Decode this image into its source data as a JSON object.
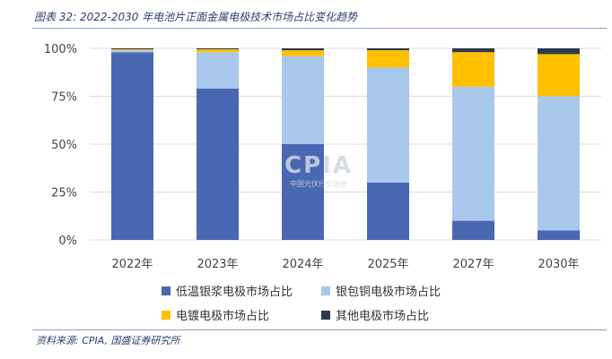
{
  "figure": {
    "title": "图表 32:  2022-2030 年电池片正面金属电极技术市场占比变化趋势",
    "source": "资料来源:  CPIA,  国盛证券研究所"
  },
  "watermark": {
    "text": "CPIA",
    "subtext": "中国光伏行业协会"
  },
  "colors": {
    "accent": "#2b3f6b"
  },
  "chart_data": {
    "type": "bar",
    "stacked": true,
    "categories": [
      "2022年",
      "2023年",
      "2024年",
      "2025年",
      "2027年",
      "2030年"
    ],
    "series": [
      {
        "name": "低温银浆电极市场占比",
        "color": "#4a67b2",
        "values": [
          98,
          79,
          50,
          30,
          10,
          5
        ]
      },
      {
        "name": "银包铜电极市场占比",
        "color": "#a9c8ec",
        "values": [
          1,
          19,
          46,
          60,
          70,
          70
        ]
      },
      {
        "name": "电镀电极市场占比",
        "color": "#ffc000",
        "values": [
          0.5,
          1.5,
          3,
          9,
          18,
          22
        ]
      },
      {
        "name": "其他电极市场占比",
        "color": "#2e3a4d",
        "values": [
          0.5,
          0.5,
          1,
          1,
          2,
          3
        ]
      }
    ],
    "ylim": [
      0,
      100
    ],
    "yticks": [
      "0%",
      "25%",
      "50%",
      "75%",
      "100%"
    ],
    "ytick_values": [
      0,
      25,
      50,
      75,
      100
    ],
    "grid": true,
    "legend_position": "bottom"
  }
}
